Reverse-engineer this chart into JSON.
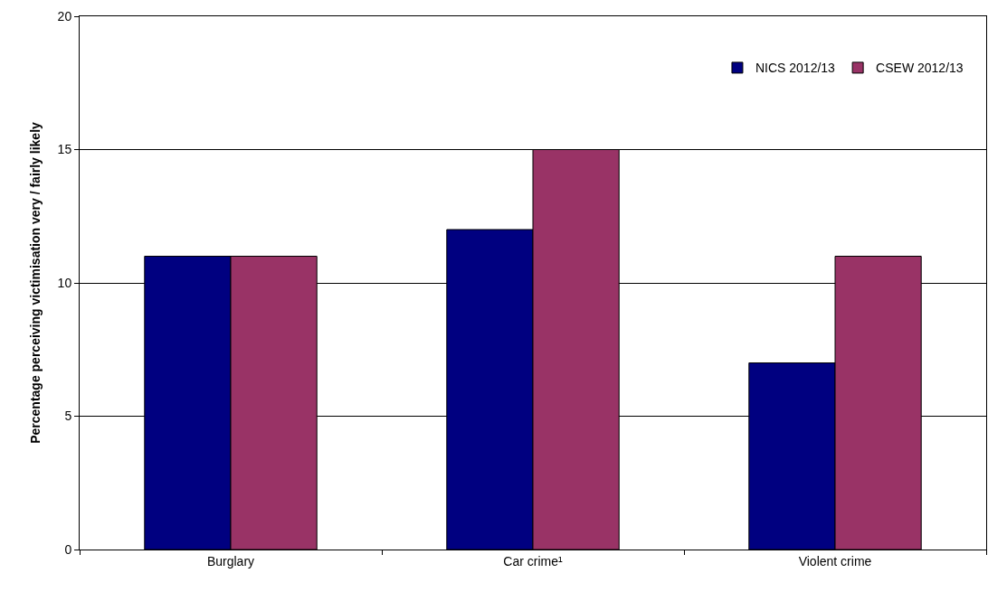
{
  "chart_data": {
    "type": "bar",
    "ylabel": "Percentage perceiving victimisation very / fairly likely",
    "categories": [
      "Burglary",
      "Car crime¹",
      "Violent crime"
    ],
    "series": [
      {
        "name": "NICS 2012/13",
        "color": "#000080",
        "values": [
          11,
          12,
          7
        ]
      },
      {
        "name": "CSEW 2012/13",
        "color": "#993366",
        "values": [
          11,
          15,
          11
        ]
      }
    ],
    "ylim": [
      0,
      20
    ],
    "yticks": [
      0,
      5,
      10,
      15,
      20
    ],
    "grid": "y",
    "legend": "top right"
  }
}
